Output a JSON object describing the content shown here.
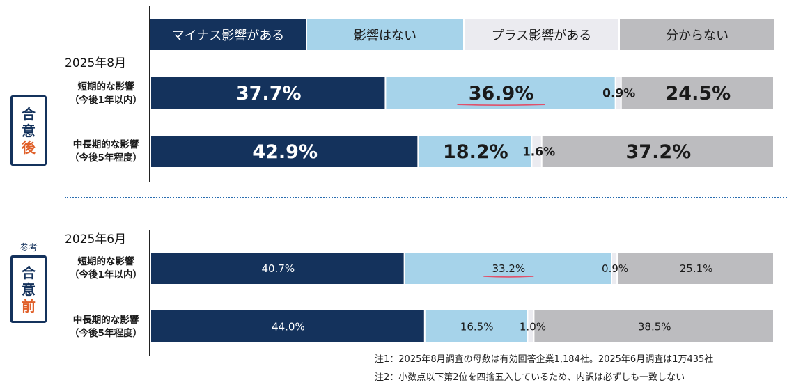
{
  "legend": [
    {
      "label": "マイナス影響がある",
      "color": "#14325c",
      "text_color": "#ffffff"
    },
    {
      "label": "影響はない",
      "color": "#a6d3ea",
      "text_color": "#1a1a1a"
    },
    {
      "label": "プラス影響がある",
      "color": "#ebebf0",
      "text_color": "#1a1a1a"
    },
    {
      "label": "分からない",
      "color": "#bcbcbf",
      "text_color": "#1a1a1a"
    }
  ],
  "sections": {
    "after": {
      "badge": [
        "合",
        "意",
        "後"
      ],
      "period": "2025年8月"
    },
    "before": {
      "badge": [
        "合",
        "意",
        "前"
      ],
      "period": "2025年6月",
      "tag": "参考"
    }
  },
  "row_labels": {
    "short": [
      "短期的な影響",
      "（今後1年以内）"
    ],
    "long": [
      "中長期的な影響",
      "（今後5年程度）"
    ]
  },
  "chart_data": {
    "type": "bar",
    "orientation": "horizontal-stacked-100",
    "series": [
      "マイナス影響がある",
      "影響はない",
      "プラス影響がある",
      "分からない"
    ],
    "rows": [
      {
        "group": "2025年8月",
        "category": "短期的な影響（今後1年以内）",
        "values": [
          37.7,
          36.9,
          0.9,
          24.5
        ],
        "labels": [
          "37.7%",
          "36.9%",
          "0.9%",
          "24.5%"
        ]
      },
      {
        "group": "2025年8月",
        "category": "中長期的な影響（今後5年程度）",
        "values": [
          42.9,
          18.2,
          1.6,
          37.2
        ],
        "labels": [
          "42.9%",
          "18.2%",
          "1.6%",
          "37.2%"
        ]
      },
      {
        "group": "2025年6月",
        "category": "短期的な影響（今後1年以内）",
        "values": [
          40.7,
          33.2,
          0.9,
          25.1
        ],
        "labels": [
          "40.7%",
          "33.2%",
          "0.9%",
          "25.1%"
        ]
      },
      {
        "group": "2025年6月",
        "category": "中長期的な影響（今後5年程度）",
        "values": [
          44.0,
          16.5,
          1.0,
          38.5
        ],
        "labels": [
          "44.0%",
          "16.5%",
          "1.0%",
          "38.5%"
        ]
      }
    ],
    "xlim": [
      0,
      100
    ]
  },
  "notes": [
    "注1：2025年8月調査の母数は有効回答企業1,184社。2025年6月調査は1万435社",
    "注2：小数点以下第2位を四捨五入しているため、内訳は必ずしも一致しない"
  ]
}
